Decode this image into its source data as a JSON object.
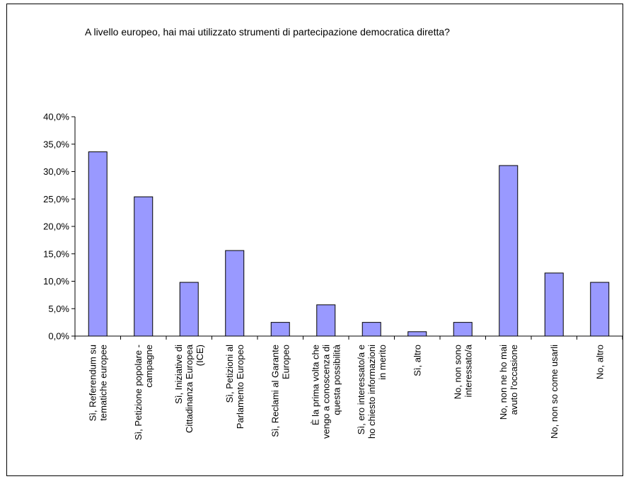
{
  "chart_data": {
    "type": "bar",
    "title": "A livello europeo, hai mai utilizzato strumenti di partecipazione democratica diretta?",
    "xlabel": "",
    "ylabel": "",
    "ylim": [
      0,
      40
    ],
    "yticks": [
      "0,0%",
      "5,0%",
      "10,0%",
      "15,0%",
      "20,0%",
      "25,0%",
      "30,0%",
      "35,0%",
      "40,0%"
    ],
    "grid": false,
    "bar_color": "#9999ff",
    "categories": [
      [
        "Sì, Referendum su",
        "tematiche europee"
      ],
      [
        "Sì, Petizione popolare -",
        "campagne"
      ],
      [
        "Sì, Iniziative di",
        "Cittadinanza Europea",
        "(ICE)"
      ],
      [
        "Sì, Petizioni al",
        "Parlamento Europeo"
      ],
      [
        "Sì, Reclami al Garante",
        "Europeo"
      ],
      [
        "È la prima volta che",
        "vengo a conoscenza di",
        "questa possibilità"
      ],
      [
        "Sì, ero interessato/a e",
        "ho chiesto informazioni",
        "in merito"
      ],
      [
        "Sì, altro"
      ],
      [
        "No, non sono",
        "interessato/a"
      ],
      [
        "No, non ne ho mai",
        "avuto l'occasione"
      ],
      [
        "No, non so come usarli"
      ],
      [
        "No, altro"
      ]
    ],
    "values": [
      33.6,
      25.4,
      9.8,
      15.6,
      2.5,
      5.7,
      2.5,
      0.8,
      2.5,
      31.1,
      11.5,
      9.8
    ]
  }
}
